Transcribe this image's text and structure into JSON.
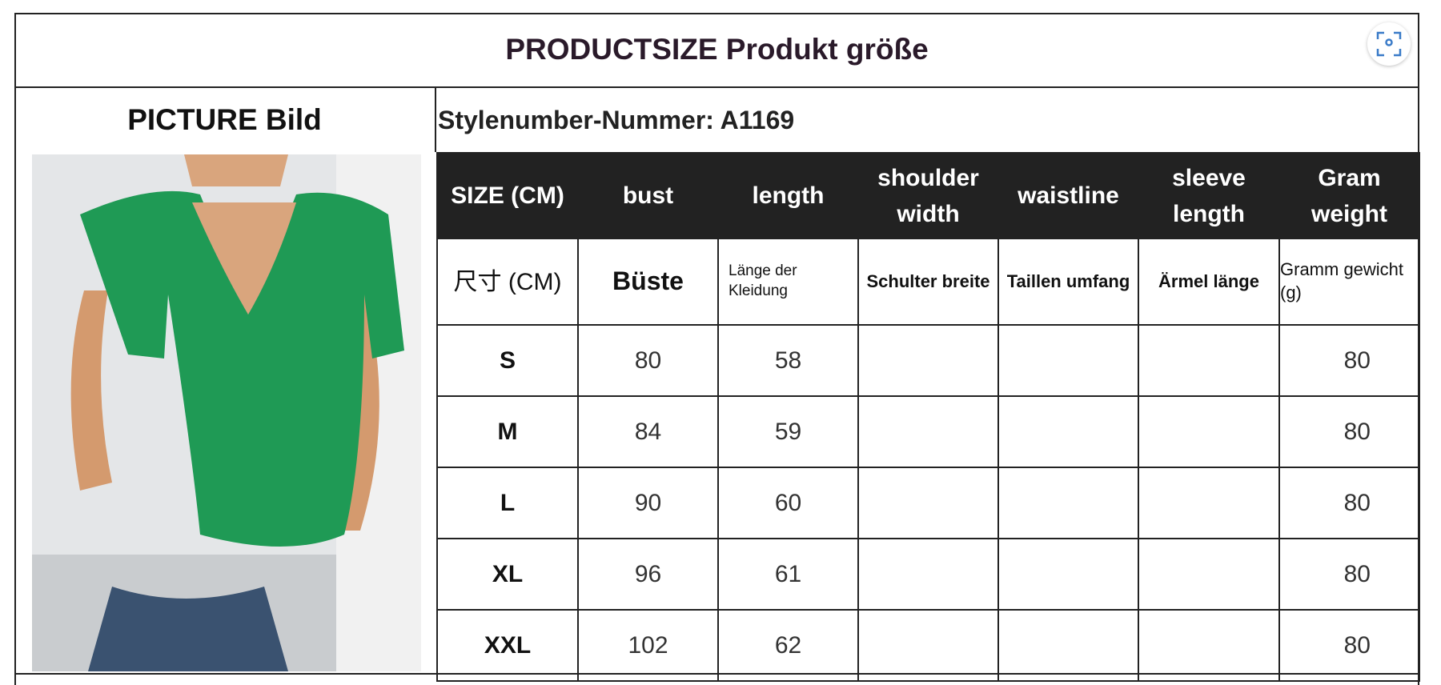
{
  "title": "PRODUCTSIZE Produkt größe",
  "picture_label": "PICTURE Bild",
  "style_number": "Stylenumber-Nummer: A1169",
  "icons": {
    "scan": "scan-icon"
  },
  "header": [
    "SIZE (CM)",
    "bust",
    "length",
    "shoulder width",
    "waistline",
    "sleeve length",
    "Gram weight"
  ],
  "subheader": [
    "尺寸 (CM)",
    "Büste",
    "Länge der Kleidung",
    "Schulter breite",
    "Taillen umfang",
    "Ärmel länge",
    "Gramm gewicht (g)"
  ],
  "rows": [
    {
      "size": "S",
      "bust": "80",
      "length": "58",
      "shoulder": "",
      "waist": "",
      "sleeve": "",
      "weight": "80"
    },
    {
      "size": "M",
      "bust": "84",
      "length": "59",
      "shoulder": "",
      "waist": "",
      "sleeve": "",
      "weight": "80"
    },
    {
      "size": "L",
      "bust": "90",
      "length": "60",
      "shoulder": "",
      "waist": "",
      "sleeve": "",
      "weight": "80"
    },
    {
      "size": "XL",
      "bust": "96",
      "length": "61",
      "shoulder": "",
      "waist": "",
      "sleeve": "",
      "weight": "80"
    },
    {
      "size": "XXL",
      "bust": "102",
      "length": "62",
      "shoulder": "",
      "waist": "",
      "sleeve": "",
      "weight": "80"
    }
  ],
  "colors": {
    "header_bg": "#222222",
    "garment": "#1f9a55",
    "jeans": "#3a5270"
  }
}
